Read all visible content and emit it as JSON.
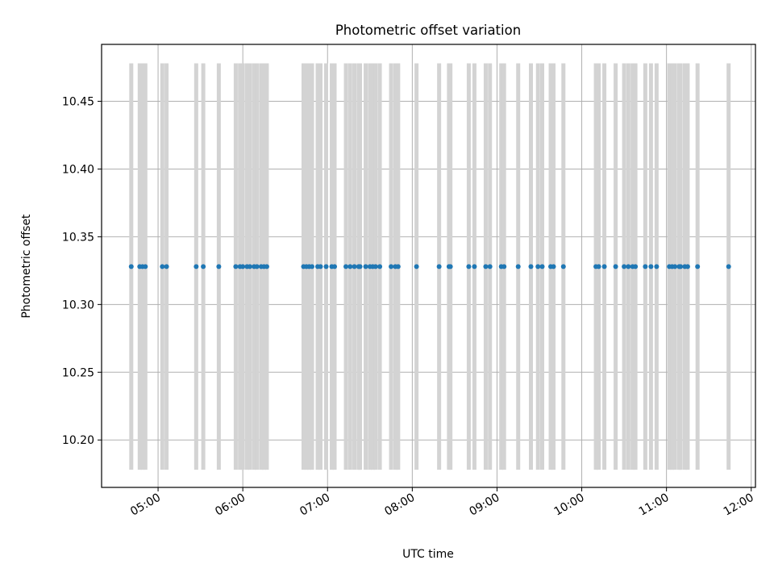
{
  "chart_data": {
    "type": "scatter",
    "title": "Photometric offset variation",
    "xlabel": "UTC time",
    "ylabel": "Photometric offset",
    "x_axis": "time",
    "xlim": [
      "04:20",
      "12:03"
    ],
    "ylim": [
      10.165,
      10.492
    ],
    "yticks": [
      10.2,
      10.25,
      10.3,
      10.35,
      10.4,
      10.45
    ],
    "ytick_labels": [
      "10.20",
      "10.25",
      "10.30",
      "10.35",
      "10.40",
      "10.45"
    ],
    "xticks": [
      "05:00",
      "06:00",
      "07:00",
      "08:00",
      "09:00",
      "10:00",
      "11:00",
      "12:00"
    ],
    "grid": true,
    "colors": {
      "points": "#1f77b4",
      "error_bars": "#d3d3d3",
      "grid": "#b0b0b0"
    },
    "series": [
      {
        "marker": "point",
        "error_bars": {
          "low": 10.178,
          "high": 10.478
        },
        "x": [
          "04:41",
          "04:47",
          "04:49",
          "04:51",
          "05:03",
          "05:06",
          "05:27",
          "05:32",
          "05:43",
          "05:55",
          "05:58",
          "06:00",
          "06:03",
          "06:05",
          "06:08",
          "06:10",
          "06:13",
          "06:15",
          "06:17",
          "06:43",
          "06:45",
          "06:47",
          "06:49",
          "06:53",
          "06:55",
          "06:59",
          "07:03",
          "07:05",
          "07:13",
          "07:16",
          "07:19",
          "07:22",
          "07:23",
          "07:27",
          "07:30",
          "07:32",
          "07:34",
          "07:37",
          "07:45",
          "07:48",
          "07:50",
          "08:03",
          "08:19",
          "08:26",
          "08:27",
          "08:40",
          "08:44",
          "08:52",
          "08:55",
          "09:03",
          "09:05",
          "09:15",
          "09:24",
          "09:29",
          "09:32",
          "09:38",
          "09:40",
          "09:47",
          "10:10",
          "10:12",
          "10:16",
          "10:24",
          "10:30",
          "10:33",
          "10:36",
          "10:38",
          "10:45",
          "10:49",
          "10:53",
          "11:02",
          "11:04",
          "11:06",
          "11:09",
          "11:10",
          "11:13",
          "11:15",
          "11:22",
          "11:44"
        ],
        "y": [
          10.328,
          10.328,
          10.328,
          10.328,
          10.328,
          10.328,
          10.328,
          10.328,
          10.328,
          10.328,
          10.328,
          10.328,
          10.328,
          10.328,
          10.328,
          10.328,
          10.328,
          10.328,
          10.328,
          10.328,
          10.328,
          10.328,
          10.328,
          10.328,
          10.328,
          10.328,
          10.328,
          10.328,
          10.328,
          10.328,
          10.328,
          10.328,
          10.328,
          10.328,
          10.328,
          10.328,
          10.328,
          10.328,
          10.328,
          10.328,
          10.328,
          10.328,
          10.328,
          10.328,
          10.328,
          10.328,
          10.328,
          10.328,
          10.328,
          10.328,
          10.328,
          10.328,
          10.328,
          10.328,
          10.328,
          10.328,
          10.328,
          10.328,
          10.328,
          10.328,
          10.328,
          10.328,
          10.328,
          10.328,
          10.328,
          10.328,
          10.328,
          10.328,
          10.328,
          10.328,
          10.328,
          10.328,
          10.328,
          10.328,
          10.328,
          10.328,
          10.328,
          10.328
        ]
      }
    ]
  }
}
